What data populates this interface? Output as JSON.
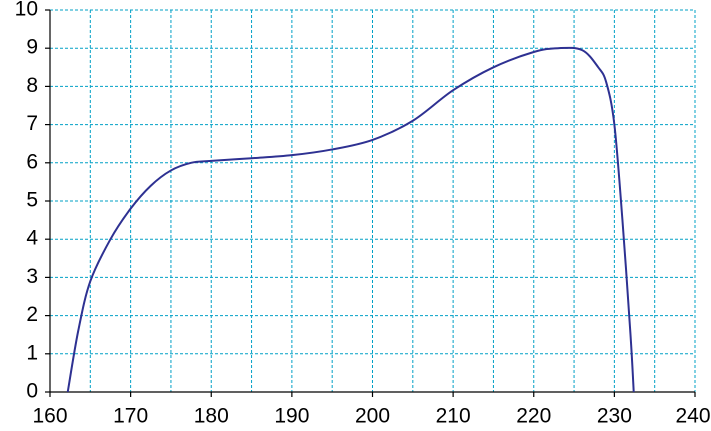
{
  "chart_data": {
    "type": "line",
    "x": [
      162.2,
      163.5,
      165,
      167.5,
      170,
      172.5,
      175,
      177.5,
      180,
      185,
      190,
      195,
      200,
      205,
      210,
      215,
      220,
      223,
      226,
      228,
      229,
      230,
      231,
      232,
      232.4
    ],
    "series": [
      {
        "color": "#2e3192",
        "values": [
          0,
          1.6,
          2.9,
          4.0,
          4.8,
          5.4,
          5.8,
          6.0,
          6.05,
          6.12,
          6.2,
          6.35,
          6.6,
          7.1,
          7.9,
          8.5,
          8.9,
          9.0,
          8.95,
          8.5,
          8.1,
          7.0,
          4.5,
          1.5,
          0
        ]
      }
    ],
    "xlim": [
      160,
      240
    ],
    "ylim": [
      0,
      10
    ],
    "xticks": [
      160,
      170,
      180,
      190,
      200,
      210,
      220,
      230,
      240
    ],
    "xgridlines": [
      160,
      165,
      170,
      175,
      180,
      185,
      190,
      195,
      200,
      205,
      210,
      215,
      220,
      225,
      230,
      235,
      240
    ],
    "yticks": [
      0,
      1,
      2,
      3,
      4,
      5,
      6,
      7,
      8,
      9,
      10
    ],
    "grid": true
  }
}
